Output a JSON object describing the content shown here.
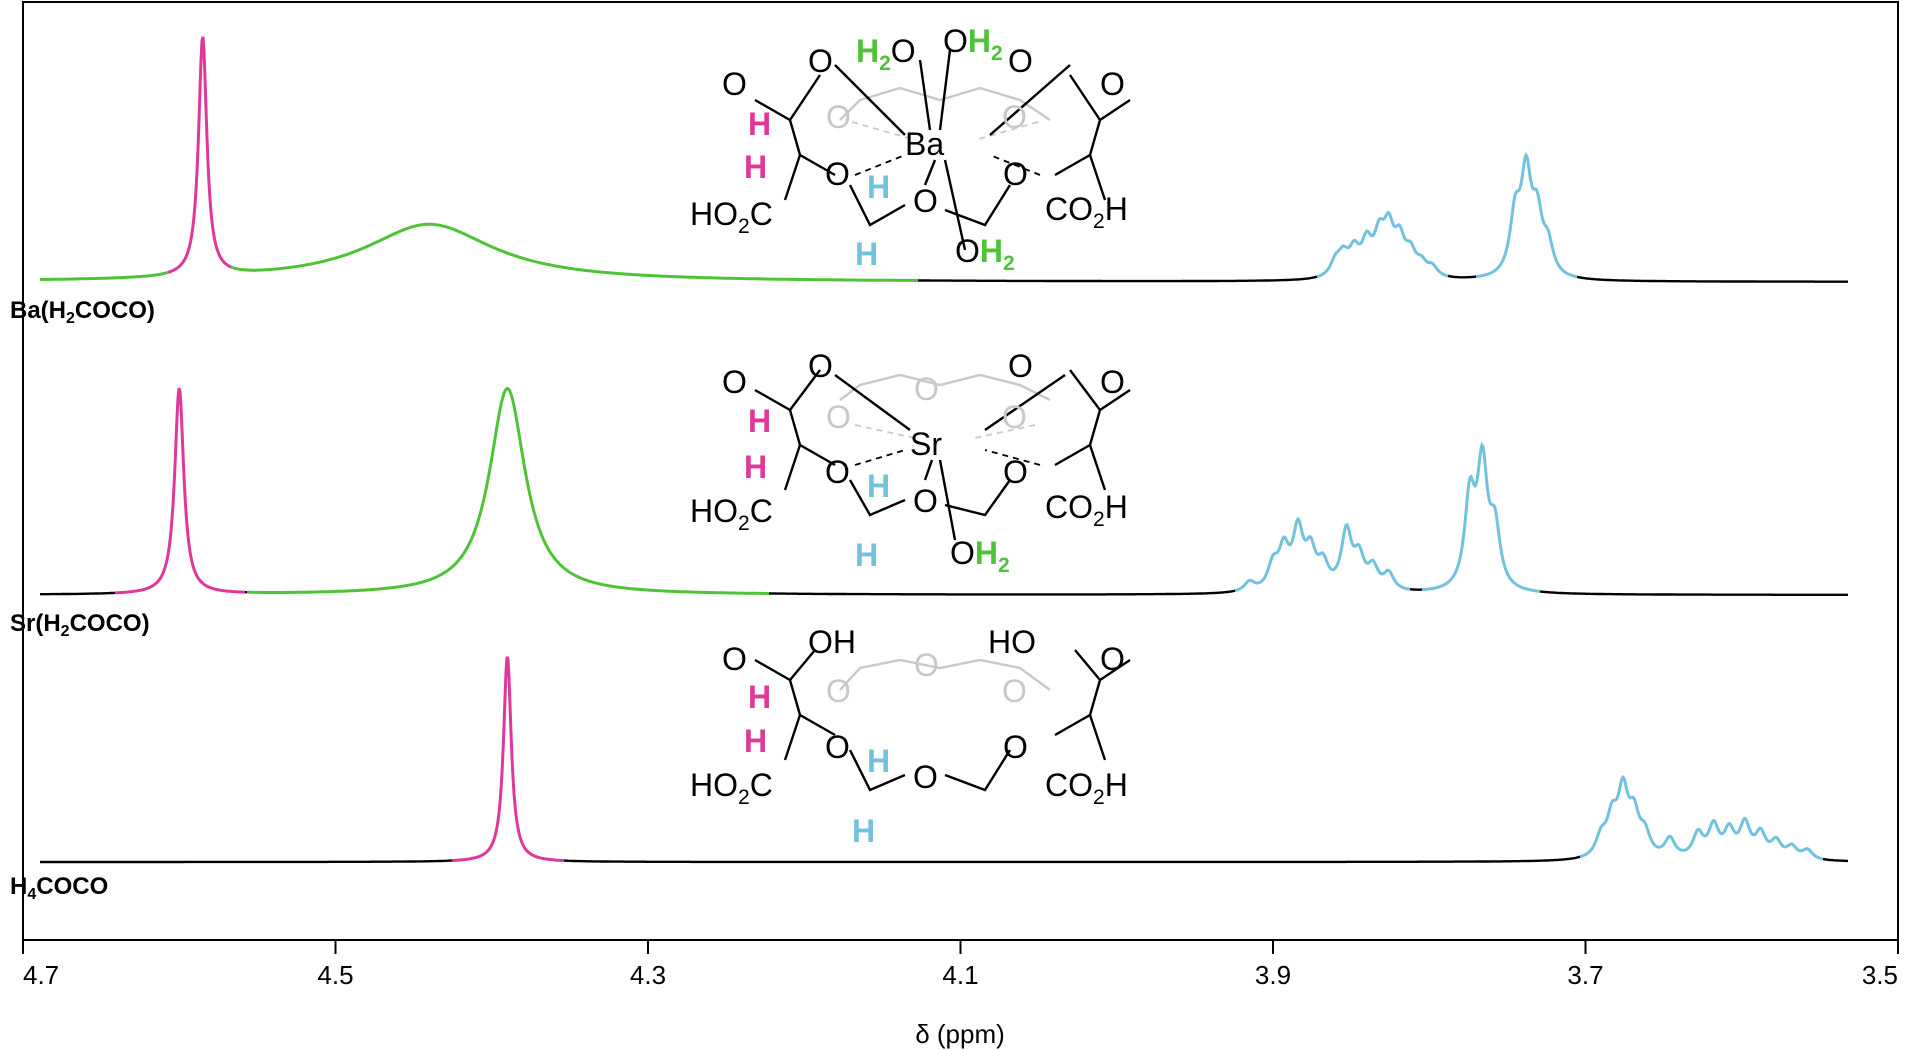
{
  "chart_data": {
    "type": "line",
    "subtype": "stacked NMR spectra",
    "xlabel": "δ (ppm)",
    "xlim": [
      4.7,
      3.5
    ],
    "x_reversed": true,
    "xticks": [
      "4.7",
      "4.5",
      "4.3",
      "4.1",
      "3.9",
      "3.7",
      "3.5"
    ],
    "colors": {
      "methine_H": "#e0389a",
      "water_H2O": "#4ec337",
      "ether_CH2": "#72c2de",
      "baseline": "#000000"
    },
    "series": [
      {
        "name": "Ba(H2COCO)",
        "label_main": "Ba(H",
        "label_sub": "2",
        "label_rest": "COCO)",
        "peaks": [
          {
            "assignment": "methine_H",
            "center": 4.585,
            "height": 1.0,
            "width": 0.0032
          },
          {
            "assignment": "water_H2O",
            "center": 4.44,
            "height": 0.24,
            "width": 0.05
          },
          {
            "assignment": "ether_CH2",
            "center": 3.86,
            "height": 0.06,
            "width": 0.004
          },
          {
            "assignment": "ether_CH2",
            "center": 3.855,
            "height": 0.08,
            "width": 0.004
          },
          {
            "assignment": "ether_CH2",
            "center": 3.848,
            "height": 0.1,
            "width": 0.004
          },
          {
            "assignment": "ether_CH2",
            "center": 3.84,
            "height": 0.13,
            "width": 0.004
          },
          {
            "assignment": "ether_CH2",
            "center": 3.832,
            "height": 0.15,
            "width": 0.004
          },
          {
            "assignment": "ether_CH2",
            "center": 3.826,
            "height": 0.18,
            "width": 0.004
          },
          {
            "assignment": "ether_CH2",
            "center": 3.819,
            "height": 0.14,
            "width": 0.004
          },
          {
            "assignment": "ether_CH2",
            "center": 3.812,
            "height": 0.09,
            "width": 0.004
          },
          {
            "assignment": "ether_CH2",
            "center": 3.805,
            "height": 0.05,
            "width": 0.004
          },
          {
            "assignment": "ether_CH2",
            "center": 3.798,
            "height": 0.04,
            "width": 0.004
          },
          {
            "assignment": "ether_CH2",
            "center": 3.745,
            "height": 0.24,
            "width": 0.004
          },
          {
            "assignment": "ether_CH2",
            "center": 3.738,
            "height": 0.4,
            "width": 0.004
          },
          {
            "assignment": "ether_CH2",
            "center": 3.731,
            "height": 0.23,
            "width": 0.004
          },
          {
            "assignment": "ether_CH2",
            "center": 3.724,
            "height": 0.12,
            "width": 0.004
          }
        ]
      },
      {
        "name": "Sr(H2COCO)",
        "label_main": "Sr(H",
        "label_sub": "2",
        "label_rest": "COCO)",
        "peaks": [
          {
            "assignment": "methine_H",
            "center": 4.6,
            "height": 0.86,
            "width": 0.0035
          },
          {
            "assignment": "water_H2O",
            "center": 4.39,
            "height": 0.86,
            "width": 0.014
          },
          {
            "assignment": "ether_CH2",
            "center": 3.915,
            "height": 0.04,
            "width": 0.004
          },
          {
            "assignment": "ether_CH2",
            "center": 3.9,
            "height": 0.1,
            "width": 0.004
          },
          {
            "assignment": "ether_CH2",
            "center": 3.893,
            "height": 0.16,
            "width": 0.004
          },
          {
            "assignment": "ether_CH2",
            "center": 3.884,
            "height": 0.24,
            "width": 0.004
          },
          {
            "assignment": "ether_CH2",
            "center": 3.876,
            "height": 0.15,
            "width": 0.004
          },
          {
            "assignment": "ether_CH2",
            "center": 3.868,
            "height": 0.1,
            "width": 0.004
          },
          {
            "assignment": "ether_CH2",
            "center": 3.853,
            "height": 0.24,
            "width": 0.004
          },
          {
            "assignment": "ether_CH2",
            "center": 3.845,
            "height": 0.13,
            "width": 0.004
          },
          {
            "assignment": "ether_CH2",
            "center": 3.836,
            "height": 0.09,
            "width": 0.004
          },
          {
            "assignment": "ether_CH2",
            "center": 3.826,
            "height": 0.07,
            "width": 0.004
          },
          {
            "assignment": "ether_CH2",
            "center": 3.774,
            "height": 0.37,
            "width": 0.004
          },
          {
            "assignment": "ether_CH2",
            "center": 3.766,
            "height": 0.5,
            "width": 0.004
          },
          {
            "assignment": "ether_CH2",
            "center": 3.758,
            "height": 0.24,
            "width": 0.004
          }
        ]
      },
      {
        "name": "H4COCO",
        "label_main": "H",
        "label_sub": "4",
        "label_rest": "COCO",
        "peaks": [
          {
            "assignment": "methine_H",
            "center": 4.39,
            "height": 0.86,
            "width": 0.003
          },
          {
            "assignment": "ether_CH2",
            "center": 3.69,
            "height": 0.08,
            "width": 0.004
          },
          {
            "assignment": "ether_CH2",
            "center": 3.683,
            "height": 0.15,
            "width": 0.004
          },
          {
            "assignment": "ether_CH2",
            "center": 3.676,
            "height": 0.26,
            "width": 0.004
          },
          {
            "assignment": "ether_CH2",
            "center": 3.669,
            "height": 0.16,
            "width": 0.004
          },
          {
            "assignment": "ether_CH2",
            "center": 3.662,
            "height": 0.09,
            "width": 0.004
          },
          {
            "assignment": "ether_CH2",
            "center": 3.646,
            "height": 0.08,
            "width": 0.004
          },
          {
            "assignment": "ether_CH2",
            "center": 3.628,
            "height": 0.1,
            "width": 0.004
          },
          {
            "assignment": "ether_CH2",
            "center": 3.618,
            "height": 0.13,
            "width": 0.004
          },
          {
            "assignment": "ether_CH2",
            "center": 3.608,
            "height": 0.11,
            "width": 0.004
          },
          {
            "assignment": "ether_CH2",
            "center": 3.598,
            "height": 0.14,
            "width": 0.004
          },
          {
            "assignment": "ether_CH2",
            "center": 3.588,
            "height": 0.1,
            "width": 0.004
          },
          {
            "assignment": "ether_CH2",
            "center": 3.578,
            "height": 0.07,
            "width": 0.004
          },
          {
            "assignment": "ether_CH2",
            "center": 3.568,
            "height": 0.05,
            "width": 0.004
          },
          {
            "assignment": "ether_CH2",
            "center": 3.558,
            "height": 0.04,
            "width": 0.004
          }
        ]
      }
    ]
  },
  "structure_text": {
    "carbonyl_O": "O",
    "ring_O": "O",
    "hydroxyl": "OH",
    "hydroxyl_rev": "HO",
    "h": "H",
    "ho2c_main": "HO",
    "ho2c_sub": "2",
    "ho2c_rest": "C",
    "co2h_main": "CO",
    "co2h_sub": "2",
    "co2h_rest": "H",
    "water_O": "O",
    "water_H": "H",
    "water_sub": "2",
    "ba": "Ba",
    "sr": "Sr"
  }
}
